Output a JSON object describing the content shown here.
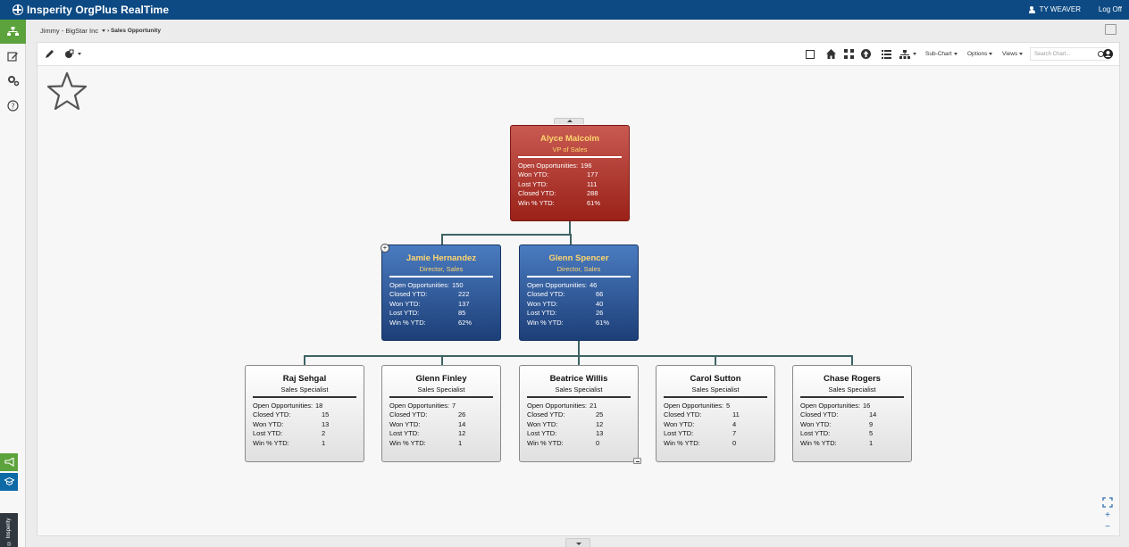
{
  "app": {
    "title": "Insperity OrgPlus RealTime",
    "user": "TY WEAVER",
    "logoff": "Log Off"
  },
  "breadcrumb": {
    "company": "Jimmy - BigStar Inc",
    "page": "› Sales Opportunity"
  },
  "toolbar": {
    "subchart": "Sub-Chart",
    "options": "Options",
    "views": "Views",
    "search_placeholder": "Search Chart..."
  },
  "brand_tab": "© Insperity",
  "accent": {
    "nav_active": "#5da33d",
    "topbar": "#0d4a84"
  },
  "org": {
    "root": {
      "name": "Alyce Malcolm",
      "title": "VP of Sales",
      "stats": [
        {
          "label": "Open Opportunities:",
          "value": "196"
        },
        {
          "label": "Won YTD:",
          "value": "177"
        },
        {
          "label": "Lost YTD:",
          "value": "111"
        },
        {
          "label": "Closed YTD:",
          "value": "288"
        },
        {
          "label": "Win % YTD:",
          "value": "61%"
        }
      ]
    },
    "directors": [
      {
        "name": "Jamie Hernandez",
        "title": "Director, Sales",
        "stats": [
          {
            "label": "Open Opportunities:",
            "value": "150"
          },
          {
            "label": "Closed YTD:",
            "value": "222"
          },
          {
            "label": "Won YTD:",
            "value": "137"
          },
          {
            "label": "Lost YTD:",
            "value": "85"
          },
          {
            "label": "Win % YTD:",
            "value": "62%"
          }
        ]
      },
      {
        "name": "Glenn Spencer",
        "title": "Director, Sales",
        "stats": [
          {
            "label": "Open Opportunities:",
            "value": "46"
          },
          {
            "label": "Closed YTD:",
            "value": "66"
          },
          {
            "label": "Won YTD:",
            "value": "40"
          },
          {
            "label": "Lost YTD:",
            "value": "26"
          },
          {
            "label": "Win % YTD:",
            "value": "61%"
          }
        ]
      }
    ],
    "specialists": [
      {
        "name": "Raj Sehgal",
        "title": "Sales Specialist",
        "stats": [
          {
            "label": "Open Opportunities:",
            "value": "18"
          },
          {
            "label": "Closed YTD:",
            "value": "15"
          },
          {
            "label": "Won YTD:",
            "value": "13"
          },
          {
            "label": "Lost YTD:",
            "value": "2"
          },
          {
            "label": "Win % YTD:",
            "value": "1"
          }
        ]
      },
      {
        "name": "Glenn Finley",
        "title": "Sales Specialist",
        "stats": [
          {
            "label": "Open Opportunities:",
            "value": "7"
          },
          {
            "label": "Closed YTD:",
            "value": "26"
          },
          {
            "label": "Won YTD:",
            "value": "14"
          },
          {
            "label": "Lost YTD:",
            "value": "12"
          },
          {
            "label": "Win % YTD:",
            "value": "1"
          }
        ]
      },
      {
        "name": "Beatrice Willis",
        "title": "Sales Specialist",
        "stats": [
          {
            "label": "Open Opportunities:",
            "value": "21"
          },
          {
            "label": "Closed YTD:",
            "value": "25"
          },
          {
            "label": "Won YTD:",
            "value": "12"
          },
          {
            "label": "Lost YTD:",
            "value": "13"
          },
          {
            "label": "Win % YTD:",
            "value": "0"
          }
        ]
      },
      {
        "name": "Carol Sutton",
        "title": "Sales Specialist",
        "stats": [
          {
            "label": "Open Opportunities:",
            "value": "5"
          },
          {
            "label": "Closed YTD:",
            "value": "11"
          },
          {
            "label": "Won YTD:",
            "value": "4"
          },
          {
            "label": "Lost YTD:",
            "value": "7"
          },
          {
            "label": "Win % YTD:",
            "value": "0"
          }
        ]
      },
      {
        "name": "Chase Rogers",
        "title": "Sales Specialist",
        "stats": [
          {
            "label": "Open Opportunities:",
            "value": "16"
          },
          {
            "label": "Closed YTD:",
            "value": "14"
          },
          {
            "label": "Won YTD:",
            "value": "9"
          },
          {
            "label": "Lost YTD:",
            "value": "5"
          },
          {
            "label": "Win % YTD:",
            "value": "1"
          }
        ]
      }
    ]
  }
}
